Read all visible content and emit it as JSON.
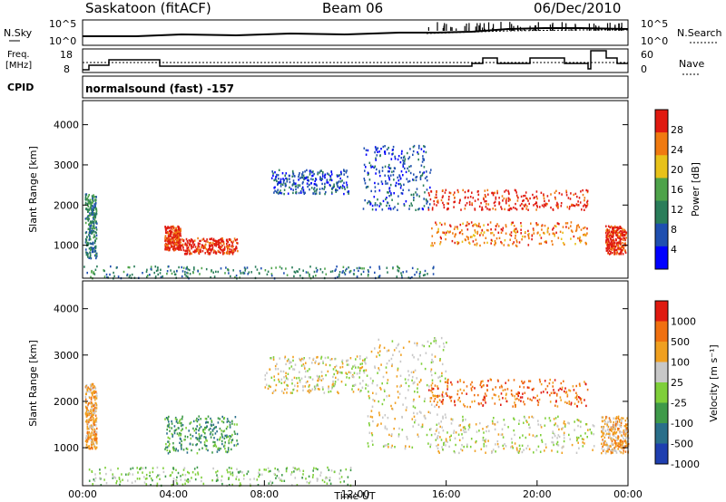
{
  "header": {
    "station": "Saskatoon (fitACF)",
    "beam": "Beam 06",
    "date": "06/Dec/2010"
  },
  "strip": {
    "nsky_label": "N.Sky",
    "nsearch_label": "N.Search",
    "freq_label_1": "Freq.",
    "freq_label_2": "[MHz]",
    "nave_label": "Nave",
    "cpid_label": "CPID",
    "cpid_value": "normalsound (fast) -157",
    "noise_left_ticks": [
      "10^5",
      "10^0"
    ],
    "noise_right_ticks": [
      "10^5",
      "10^0"
    ],
    "freq_ticks": [
      "18",
      "8"
    ],
    "nave_ticks": [
      "60",
      "0"
    ]
  },
  "chart_data": [
    {
      "type": "heatmap",
      "name": "power",
      "ylabel": "Slant Range [km]",
      "xlabel": "",
      "xlim_hours": [
        0,
        24
      ],
      "ylim_km": [
        180,
        4600
      ],
      "y_ticks": [
        "1000",
        "2000",
        "3000",
        "4000"
      ],
      "colorbar_label": "Power [dB]",
      "colorbar_ticks": [
        "28",
        "24",
        "20",
        "16",
        "12",
        "8",
        "4"
      ],
      "colorbar_colors": [
        "#0000ff",
        "#1f4fb0",
        "#2a7d5a",
        "#4ea34a",
        "#e8c21a",
        "#f07a10",
        "#e01a10"
      ],
      "regions": [
        {
          "x": [
            0.1,
            0.6
          ],
          "y": [
            700,
            2300
          ],
          "level": 2
        },
        {
          "x": [
            3.6,
            4.3
          ],
          "y": [
            900,
            1500
          ],
          "level": 6
        },
        {
          "x": [
            4.3,
            6.8
          ],
          "y": [
            800,
            1200
          ],
          "level": 6
        },
        {
          "x": [
            8.3,
            11.7
          ],
          "y": [
            2300,
            2900
          ],
          "level": 1
        },
        {
          "x": [
            12.3,
            15.3
          ],
          "y": [
            1900,
            3500
          ],
          "level": 1
        },
        {
          "x": [
            15.2,
            22.2
          ],
          "y": [
            1900,
            2400
          ],
          "level": 6
        },
        {
          "x": [
            15.3,
            22.2
          ],
          "y": [
            1000,
            1600
          ],
          "level": 5
        },
        {
          "x": [
            23.0,
            23.9
          ],
          "y": [
            800,
            1500
          ],
          "level": 6
        },
        {
          "x": [
            0,
            15.5
          ],
          "y": [
            200,
            500
          ],
          "level": 2
        }
      ]
    },
    {
      "type": "heatmap",
      "name": "velocity",
      "ylabel": "Slant Range [km]",
      "xlabel": "Time UT",
      "xlim_hours": [
        0,
        24
      ],
      "ylim_km": [
        180,
        4600
      ],
      "x_ticks": [
        "00:00",
        "04:00",
        "08:00",
        "12:00",
        "16:00",
        "20:00",
        "00:00"
      ],
      "y_ticks": [
        "1000",
        "2000",
        "3000",
        "4000"
      ],
      "colorbar_label": "Velocity [m s⁻¹]",
      "colorbar_ticks": [
        "1000",
        "500",
        "100",
        "25",
        "-25",
        "-100",
        "-500",
        "-1000"
      ],
      "colorbar_colors": [
        "#1f3fb0",
        "#2a6f8a",
        "#3f9a4a",
        "#7fcf3a",
        "#c8c8c8",
        "#f0a020",
        "#f07010",
        "#e01a10"
      ],
      "regions": [
        {
          "x": [
            0.1,
            0.6
          ],
          "y": [
            1000,
            2400
          ],
          "level": 5
        },
        {
          "x": [
            3.6,
            6.8
          ],
          "y": [
            900,
            1700
          ],
          "level": 2
        },
        {
          "x": [
            8.0,
            12.5
          ],
          "y": [
            2200,
            3000
          ],
          "level": 4
        },
        {
          "x": [
            12.5,
            16.0
          ],
          "y": [
            1000,
            3400
          ],
          "level": 4
        },
        {
          "x": [
            15.2,
            22.2
          ],
          "y": [
            1900,
            2500
          ],
          "level": 6
        },
        {
          "x": [
            15.5,
            22.5
          ],
          "y": [
            900,
            1700
          ],
          "level": 4
        },
        {
          "x": [
            22.8,
            24
          ],
          "y": [
            900,
            1700
          ],
          "level": 5
        },
        {
          "x": [
            0,
            12
          ],
          "y": [
            200,
            600
          ],
          "level": 3
        }
      ]
    }
  ]
}
